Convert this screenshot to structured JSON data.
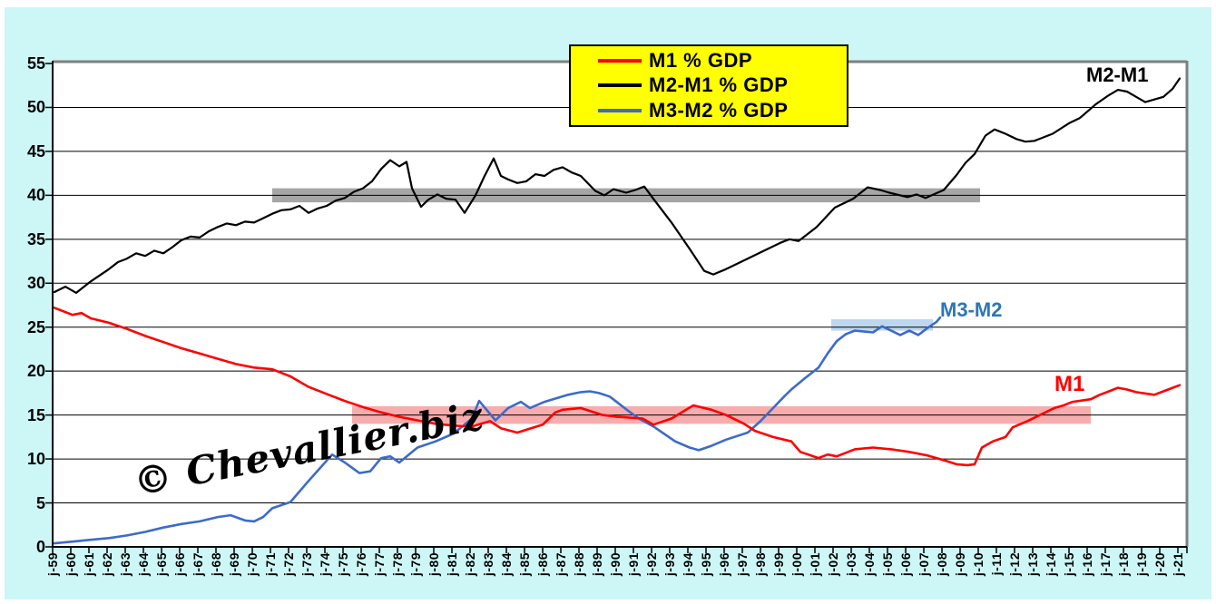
{
  "page": {
    "background": "#ffffff",
    "chart_background": "#cdf6f6"
  },
  "legend": {
    "background": "#ffff00",
    "items": [
      {
        "label": "M1 % GDP",
        "color": "#ff0000"
      },
      {
        "label": "M2-M1 % GDP",
        "color": "#000000"
      },
      {
        "label": "M3-M2 % GDP",
        "color": "#3c6bc9"
      }
    ]
  },
  "annotations": {
    "m2m1": {
      "text": "M2-M1",
      "color": "#000000"
    },
    "m3m2": {
      "text": "M3-M2",
      "color": "#2e75b6"
    },
    "m1": {
      "text": "M1",
      "color": "#ff0000"
    }
  },
  "watermark": {
    "text": "© Chevallier.biz"
  },
  "chart_data": {
    "type": "line",
    "title": "",
    "grid": true,
    "legend_position": "top-center",
    "x_axis": {
      "label": "",
      "tick_labels": [
        "j-59",
        "j-60",
        "j-61",
        "j-62",
        "j-63",
        "j-64",
        "j-65",
        "j-66",
        "j-67",
        "j-68",
        "j-69",
        "j-70",
        "j-71",
        "j-72",
        "j-73",
        "j-74",
        "j-75",
        "j-76",
        "j-77",
        "j-78",
        "j-79",
        "j-80",
        "j-81",
        "j-82",
        "j-83",
        "j-84",
        "j-85",
        "j-86",
        "j-87",
        "j-88",
        "j-89",
        "j-90",
        "j-91",
        "j-92",
        "j-93",
        "j-94",
        "j-95",
        "j-96",
        "j-97",
        "j-98",
        "j-99",
        "j-00",
        "j-01",
        "j-02",
        "j-03",
        "j-04",
        "j-05",
        "j-06",
        "j-07",
        "j-08",
        "j-09",
        "j-10",
        "j-11",
        "j-12",
        "j-13",
        "j-14",
        "j-15",
        "j-16",
        "j-17",
        "j-18",
        "j-19",
        "j-20",
        "j-21"
      ],
      "start_year": 1959
    },
    "y_axis": {
      "label": "",
      "min": 0,
      "max": 55,
      "step": 5,
      "ticks": [
        0,
        5,
        10,
        15,
        20,
        25,
        30,
        35,
        40,
        45,
        50,
        55
      ]
    },
    "bands": [
      {
        "name": "M2-M1 plateau band",
        "color": "#a6a6a6",
        "x_start": 1971,
        "x_end": 2010,
        "y_low": 39.2,
        "y_high": 40.8
      },
      {
        "name": "M1 plateau band",
        "color": "#f7adad",
        "x_start": 1975.4,
        "x_end": 2016.1,
        "y_low": 14.0,
        "y_high": 16.0
      },
      {
        "name": "M3-M2 plateau band",
        "color": "#bdd7ee",
        "x_start": 2001.8,
        "x_end": 2007.4,
        "y_low": 24.6,
        "y_high": 25.9
      }
    ],
    "series": [
      {
        "name": "M1 % GDP",
        "color": "#ff0000",
        "points": [
          [
            1959,
            27.2
          ],
          [
            1959.5,
            26.8
          ],
          [
            1960,
            26.4
          ],
          [
            1960.5,
            26.6
          ],
          [
            1961,
            26.0
          ],
          [
            1962,
            25.5
          ],
          [
            1963,
            24.8
          ],
          [
            1964,
            24.0
          ],
          [
            1965,
            23.3
          ],
          [
            1966,
            22.6
          ],
          [
            1967,
            22.0
          ],
          [
            1968,
            21.4
          ],
          [
            1969,
            20.8
          ],
          [
            1970,
            20.4
          ],
          [
            1971,
            20.2
          ],
          [
            1972,
            19.4
          ],
          [
            1973,
            18.2
          ],
          [
            1974,
            17.4
          ],
          [
            1975,
            16.6
          ],
          [
            1976,
            15.9
          ],
          [
            1977,
            15.3
          ],
          [
            1978,
            14.8
          ],
          [
            1979,
            14.4
          ],
          [
            1980,
            14.0
          ],
          [
            1981,
            13.8
          ],
          [
            1982,
            13.7
          ],
          [
            1983,
            14.3
          ],
          [
            1983.6,
            13.5
          ],
          [
            1984.5,
            13.0
          ],
          [
            1985.9,
            13.9
          ],
          [
            1986.6,
            15.3
          ],
          [
            1987,
            15.6
          ],
          [
            1988,
            15.8
          ],
          [
            1989.2,
            15.0
          ],
          [
            1990,
            14.8
          ],
          [
            1991.4,
            14.6
          ],
          [
            1992,
            13.9
          ],
          [
            1993,
            14.6
          ],
          [
            1994.2,
            16.1
          ],
          [
            1995.2,
            15.6
          ],
          [
            1996,
            15.0
          ],
          [
            1997,
            14.0
          ],
          [
            1997.6,
            13.2
          ],
          [
            1998.6,
            12.5
          ],
          [
            1999.6,
            12.0
          ],
          [
            2000.1,
            10.8
          ],
          [
            2001.1,
            10.1
          ],
          [
            2001.6,
            10.5
          ],
          [
            2002.1,
            10.3
          ],
          [
            2003.1,
            11.1
          ],
          [
            2004.1,
            11.3
          ],
          [
            2005.1,
            11.1
          ],
          [
            2006.1,
            10.8
          ],
          [
            2007.1,
            10.4
          ],
          [
            2008.1,
            9.8
          ],
          [
            2008.7,
            9.4
          ],
          [
            2009.3,
            9.3
          ],
          [
            2009.7,
            9.4
          ],
          [
            2010.1,
            11.3
          ],
          [
            2010.7,
            12.0
          ],
          [
            2011.4,
            12.5
          ],
          [
            2011.8,
            13.6
          ],
          [
            2012.6,
            14.3
          ],
          [
            2013.1,
            14.8
          ],
          [
            2013.6,
            15.3
          ],
          [
            2014.1,
            15.8
          ],
          [
            2014.6,
            16.1
          ],
          [
            2015.1,
            16.5
          ],
          [
            2016.1,
            16.8
          ],
          [
            2016.6,
            17.3
          ],
          [
            2017.1,
            17.7
          ],
          [
            2017.6,
            18.1
          ],
          [
            2018.1,
            17.9
          ],
          [
            2018.6,
            17.6
          ],
          [
            2019.6,
            17.3
          ],
          [
            2020.1,
            17.7
          ],
          [
            2021,
            18.4
          ]
        ]
      },
      {
        "name": "M2-M1 % GDP",
        "color": "#000000",
        "points": [
          [
            1959,
            29.0
          ],
          [
            1959.6,
            29.6
          ],
          [
            1960.2,
            28.9
          ],
          [
            1961,
            30.2
          ],
          [
            1962,
            31.6
          ],
          [
            1962.5,
            32.4
          ],
          [
            1963,
            32.8
          ],
          [
            1963.5,
            33.4
          ],
          [
            1964,
            33.1
          ],
          [
            1964.5,
            33.7
          ],
          [
            1965,
            33.4
          ],
          [
            1965.5,
            34.1
          ],
          [
            1966,
            34.9
          ],
          [
            1966.5,
            35.3
          ],
          [
            1967,
            35.2
          ],
          [
            1967.5,
            35.9
          ],
          [
            1968,
            36.4
          ],
          [
            1968.5,
            36.8
          ],
          [
            1969,
            36.6
          ],
          [
            1969.5,
            37.0
          ],
          [
            1970,
            36.9
          ],
          [
            1970.5,
            37.4
          ],
          [
            1971,
            37.9
          ],
          [
            1971.5,
            38.3
          ],
          [
            1972,
            38.4
          ],
          [
            1972.5,
            38.8
          ],
          [
            1973,
            38.0
          ],
          [
            1973.5,
            38.5
          ],
          [
            1974,
            38.8
          ],
          [
            1974.5,
            39.4
          ],
          [
            1975,
            39.7
          ],
          [
            1975.5,
            40.4
          ],
          [
            1976,
            40.8
          ],
          [
            1976.5,
            41.6
          ],
          [
            1977,
            43.0
          ],
          [
            1977.5,
            44.0
          ],
          [
            1978,
            43.3
          ],
          [
            1978.4,
            43.8
          ],
          [
            1978.7,
            40.8
          ],
          [
            1979.2,
            38.7
          ],
          [
            1979.6,
            39.5
          ],
          [
            1980.1,
            40.1
          ],
          [
            1980.6,
            39.6
          ],
          [
            1981.1,
            39.5
          ],
          [
            1981.6,
            38.0
          ],
          [
            1982.2,
            40.0
          ],
          [
            1982.7,
            42.2
          ],
          [
            1983.2,
            44.2
          ],
          [
            1983.6,
            42.2
          ],
          [
            1984,
            41.8
          ],
          [
            1984.5,
            41.4
          ],
          [
            1985,
            41.6
          ],
          [
            1985.5,
            42.4
          ],
          [
            1986,
            42.2
          ],
          [
            1986.5,
            42.9
          ],
          [
            1987,
            43.2
          ],
          [
            1987.5,
            42.6
          ],
          [
            1988,
            42.2
          ],
          [
            1988.8,
            40.5
          ],
          [
            1989.3,
            40.0
          ],
          [
            1989.8,
            40.7
          ],
          [
            1990.5,
            40.3
          ],
          [
            1991,
            40.6
          ],
          [
            1991.5,
            41.0
          ],
          [
            1992,
            39.6
          ],
          [
            1993,
            36.9
          ],
          [
            1994,
            33.9
          ],
          [
            1994.8,
            31.4
          ],
          [
            1995.3,
            31.0
          ],
          [
            1996,
            31.6
          ],
          [
            1997,
            32.6
          ],
          [
            1998,
            33.6
          ],
          [
            1999,
            34.6
          ],
          [
            1999.5,
            35.0
          ],
          [
            2000,
            34.8
          ],
          [
            2001,
            36.4
          ],
          [
            2002,
            38.6
          ],
          [
            2003,
            39.6
          ],
          [
            2003.8,
            40.9
          ],
          [
            2004.5,
            40.6
          ],
          [
            2005,
            40.3
          ],
          [
            2006,
            39.8
          ],
          [
            2006.5,
            40.1
          ],
          [
            2007,
            39.7
          ],
          [
            2008,
            40.6
          ],
          [
            2008.7,
            42.3
          ],
          [
            2009.2,
            43.7
          ],
          [
            2009.7,
            44.7
          ],
          [
            2010.3,
            46.8
          ],
          [
            2010.8,
            47.5
          ],
          [
            2011.4,
            47.0
          ],
          [
            2012,
            46.4
          ],
          [
            2012.5,
            46.1
          ],
          [
            2013,
            46.2
          ],
          [
            2014,
            47.0
          ],
          [
            2014.9,
            48.2
          ],
          [
            2015.5,
            48.8
          ],
          [
            2016.4,
            50.4
          ],
          [
            2017.1,
            51.4
          ],
          [
            2017.6,
            52.0
          ],
          [
            2018.1,
            51.8
          ],
          [
            2018.6,
            51.2
          ],
          [
            2019.1,
            50.6
          ],
          [
            2019.6,
            50.9
          ],
          [
            2020.1,
            51.2
          ],
          [
            2020.6,
            52.1
          ],
          [
            2021,
            53.3
          ]
        ]
      },
      {
        "name": "M3-M2 % GDP",
        "color": "#3c6bc9",
        "points": [
          [
            1959,
            0.4
          ],
          [
            1960,
            0.6
          ],
          [
            1961,
            0.8
          ],
          [
            1962,
            1.0
          ],
          [
            1963,
            1.3
          ],
          [
            1964,
            1.7
          ],
          [
            1965,
            2.2
          ],
          [
            1966,
            2.6
          ],
          [
            1967,
            2.9
          ],
          [
            1968,
            3.4
          ],
          [
            1968.7,
            3.6
          ],
          [
            1969.5,
            3.0
          ],
          [
            1970,
            2.9
          ],
          [
            1970.5,
            3.4
          ],
          [
            1971,
            4.4
          ],
          [
            1972,
            5.1
          ],
          [
            1973,
            7.5
          ],
          [
            1974.3,
            10.5
          ],
          [
            1975,
            9.6
          ],
          [
            1975.8,
            8.4
          ],
          [
            1976.4,
            8.6
          ],
          [
            1977,
            10.1
          ],
          [
            1977.5,
            10.3
          ],
          [
            1978,
            9.6
          ],
          [
            1979,
            11.3
          ],
          [
            1980,
            12.0
          ],
          [
            1981,
            12.9
          ],
          [
            1982,
            14.6
          ],
          [
            1982.4,
            16.6
          ],
          [
            1983.3,
            14.4
          ],
          [
            1984,
            15.8
          ],
          [
            1984.7,
            16.5
          ],
          [
            1985.2,
            15.8
          ],
          [
            1986,
            16.5
          ],
          [
            1987.3,
            17.3
          ],
          [
            1988,
            17.6
          ],
          [
            1988.5,
            17.7
          ],
          [
            1989,
            17.5
          ],
          [
            1989.6,
            17.1
          ],
          [
            1990.6,
            15.5
          ],
          [
            1991.2,
            14.6
          ],
          [
            1992,
            13.7
          ],
          [
            1993.2,
            12.0
          ],
          [
            1994,
            11.3
          ],
          [
            1994.5,
            11.0
          ],
          [
            1995.2,
            11.5
          ],
          [
            1996,
            12.2
          ],
          [
            1997.2,
            13.0
          ],
          [
            1997.9,
            14.3
          ],
          [
            1998.6,
            15.8
          ],
          [
            1999.2,
            17.1
          ],
          [
            1999.6,
            17.9
          ],
          [
            2000.3,
            19.1
          ],
          [
            2000.6,
            19.6
          ],
          [
            2001.1,
            20.4
          ],
          [
            2001.6,
            22.0
          ],
          [
            2002.1,
            23.4
          ],
          [
            2002.6,
            24.2
          ],
          [
            2003.1,
            24.6
          ],
          [
            2004.1,
            24.4
          ],
          [
            2004.6,
            25.1
          ],
          [
            2005.1,
            24.6
          ],
          [
            2005.6,
            24.1
          ],
          [
            2006.1,
            24.6
          ],
          [
            2006.6,
            24.1
          ],
          [
            2007.1,
            24.9
          ],
          [
            2007.6,
            25.6
          ],
          [
            2007.8,
            26.1
          ]
        ]
      }
    ]
  }
}
